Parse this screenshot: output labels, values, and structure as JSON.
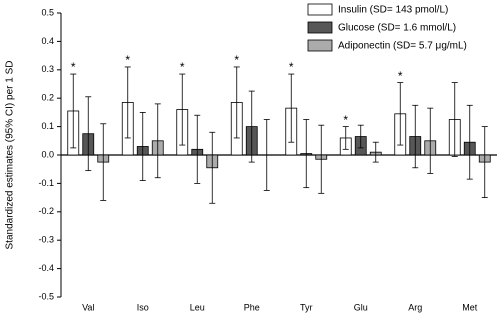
{
  "chart_data": {
    "type": "bar",
    "y_label": "Standardized estimates (95% CI) per 1 SD",
    "categories": [
      "Val",
      "Iso",
      "Leu",
      "Phe",
      "Tyr",
      "Glu",
      "Arg",
      "Met"
    ],
    "series": [
      {
        "name": "Insulin (SD= 143 pmol/L)",
        "color": "#ffffff",
        "values": [
          0.155,
          0.185,
          0.16,
          0.185,
          0.165,
          0.06,
          0.145,
          0.125
        ],
        "errors": [
          0.13,
          0.125,
          0.125,
          0.125,
          0.12,
          0.04,
          0.11,
          0.13
        ]
      },
      {
        "name": "Glucose (SD= 1.6 mmol/L)",
        "color": "#575757",
        "values": [
          0.075,
          0.03,
          0.02,
          0.1,
          0.005,
          0.065,
          0.065,
          0.045
        ],
        "errors": [
          0.13,
          0.12,
          0.12,
          0.125,
          0.12,
          0.04,
          0.11,
          0.13
        ]
      },
      {
        "name": "Adiponectin (SD= 5.7 μg/mL)",
        "color": "#ababab",
        "values": [
          -0.025,
          0.05,
          -0.045,
          0,
          -0.015,
          0.01,
          0.05,
          -0.025
        ],
        "errors": [
          0.135,
          0.13,
          0.125,
          0.125,
          0.12,
          0.035,
          0.115,
          0.125
        ]
      }
    ],
    "significance": [
      "*",
      "*",
      "*",
      "*",
      "*",
      "*",
      "*",
      null
    ],
    "ylim": [
      -0.5,
      0.5
    ],
    "yticks": [
      0.5,
      0.4,
      0.3,
      0.2,
      0.1,
      {
        "value": 0,
        "label": "0.0"
      },
      -0.1,
      -0.2,
      -0.3,
      -0.4,
      -0.5
    ],
    "legend": "upper right"
  }
}
